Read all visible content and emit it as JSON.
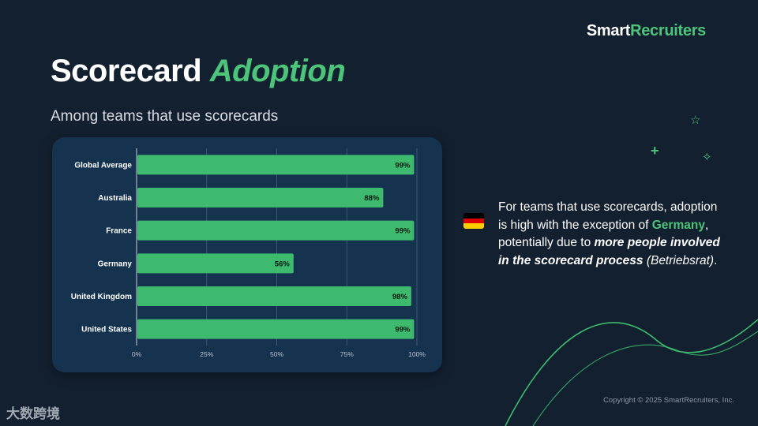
{
  "brand": {
    "part1": "Smart",
    "part2": "Recruiters"
  },
  "title": {
    "part1": "Scorecard ",
    "part2": "Adoption"
  },
  "subtitle": "Among teams that use scorecards",
  "colors": {
    "background": "#13202f",
    "panel": "#15324f",
    "bar": "#3dba6e",
    "accent": "#4cc47a"
  },
  "chart_data": {
    "type": "bar",
    "orientation": "horizontal",
    "categories": [
      "Global Average",
      "Australia",
      "France",
      "Germany",
      "United Kingdom",
      "United States"
    ],
    "values": [
      99,
      88,
      99,
      56,
      98,
      99
    ],
    "value_labels": [
      "99%",
      "88%",
      "99%",
      "56%",
      "98%",
      "99%"
    ],
    "xlim": [
      0,
      100
    ],
    "xticks": [
      "0%",
      "25%",
      "50%",
      "75%",
      "100%"
    ],
    "grid": true
  },
  "note": {
    "flag": "germany-flag",
    "text1": "For teams that use scorecards, adoption is high with the exception of ",
    "highlight": "Germany",
    "text2": ", potentially due to ",
    "emphasis": "more people involved in the scorecard process",
    "text3": " ",
    "italic": "(Betriebsrat)",
    "text4": "."
  },
  "copyright": "Copyright © 2025 SmartRecruiters, Inc.",
  "watermark": "大数跨境"
}
